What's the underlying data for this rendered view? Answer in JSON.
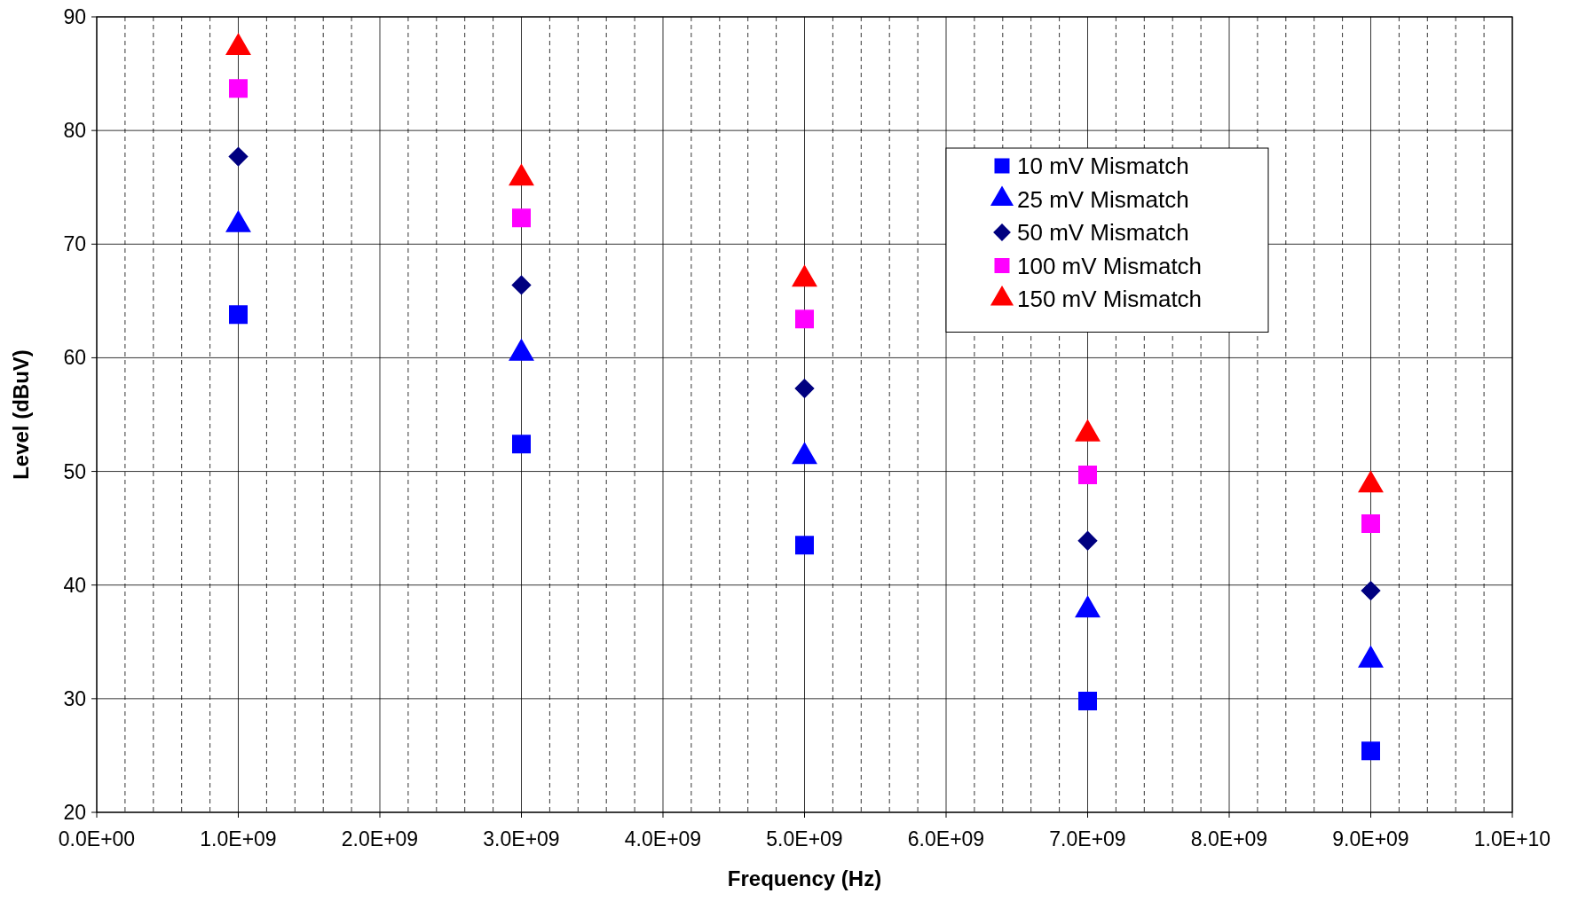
{
  "chart_data": {
    "type": "scatter",
    "xlabel": "Frequency (Hz)",
    "ylabel": "Level (dBuV)",
    "x": [
      1000000000.0,
      3000000000.0,
      5000000000.0,
      7000000000.0,
      9000000000.0
    ],
    "series": [
      {
        "name": "10 mV Mismatch",
        "color": "#0000ff",
        "marker": "square",
        "values": [
          63.8,
          52.4,
          43.5,
          29.8,
          25.4
        ]
      },
      {
        "name": "25 mV Mismatch",
        "color": "#0000ff",
        "marker": "triangle",
        "values": [
          71.7,
          60.4,
          51.3,
          37.8,
          33.4
        ]
      },
      {
        "name": "50 mV Mismatch",
        "color": "#000080",
        "marker": "diamond",
        "values": [
          77.7,
          66.4,
          57.3,
          43.9,
          39.5
        ]
      },
      {
        "name": "100 mV Mismatch",
        "color": "#ff00ff",
        "marker": "square",
        "values": [
          83.7,
          72.3,
          63.4,
          49.7,
          45.4
        ]
      },
      {
        "name": "150 mV Mismatch",
        "color": "#ff0000",
        "marker": "triangle",
        "values": [
          87.3,
          75.8,
          66.9,
          53.3,
          48.8
        ]
      }
    ],
    "xlim": [
      0,
      10000000000.0
    ],
    "xticks": [
      {
        "value": 0,
        "label": "0.0E+00"
      },
      {
        "value": 1000000000.0,
        "label": "1.0E+09"
      },
      {
        "value": 2000000000.0,
        "label": "2.0E+09"
      },
      {
        "value": 3000000000.0,
        "label": "3.0E+09"
      },
      {
        "value": 4000000000.0,
        "label": "4.0E+09"
      },
      {
        "value": 5000000000.0,
        "label": "5.0E+09"
      },
      {
        "value": 6000000000.0,
        "label": "6.0E+09"
      },
      {
        "value": 7000000000.0,
        "label": "7.0E+09"
      },
      {
        "value": 8000000000.0,
        "label": "8.0E+09"
      },
      {
        "value": 9000000000.0,
        "label": "9.0E+09"
      },
      {
        "value": 10000000000.0,
        "label": "1.0E+10"
      }
    ],
    "ylim": [
      20,
      90
    ],
    "yticks": [
      20,
      30,
      40,
      50,
      60,
      70,
      80,
      90
    ],
    "grid": true,
    "legend": "top right"
  }
}
